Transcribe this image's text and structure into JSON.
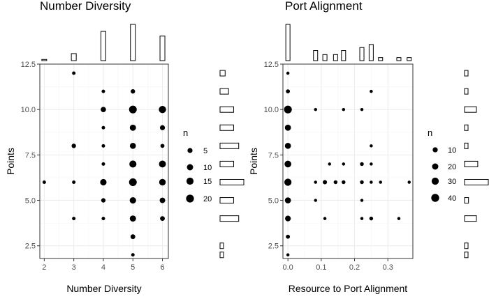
{
  "chart_data": [
    {
      "type": "scatter",
      "title": "Number Diversity",
      "xlabel": "Number Diversity",
      "ylabel": "Points",
      "xlim": [
        1.85,
        6.2
      ],
      "ylim": [
        1.8,
        12.5
      ],
      "x_ticks": [
        "2",
        "3",
        "4",
        "5",
        "6"
      ],
      "y_ticks": [
        "2.5",
        "5.0",
        "7.5",
        "10.0",
        "12.5"
      ],
      "legend": {
        "title": "n",
        "placement": "right",
        "sizes": [
          5,
          10,
          15,
          20
        ],
        "labels": [
          "5",
          "10",
          "15",
          "20"
        ]
      },
      "points": [
        {
          "x": 2,
          "y": 6,
          "n": 1
        },
        {
          "x": 3,
          "y": 12,
          "n": 1
        },
        {
          "x": 3,
          "y": 8,
          "n": 3
        },
        {
          "x": 3,
          "y": 6,
          "n": 1
        },
        {
          "x": 3,
          "y": 4,
          "n": 1
        },
        {
          "x": 4,
          "y": 11,
          "n": 1
        },
        {
          "x": 4,
          "y": 10,
          "n": 6
        },
        {
          "x": 4,
          "y": 9,
          "n": 1
        },
        {
          "x": 4,
          "y": 8,
          "n": 1
        },
        {
          "x": 4,
          "y": 7,
          "n": 1
        },
        {
          "x": 4,
          "y": 6,
          "n": 11
        },
        {
          "x": 4,
          "y": 5,
          "n": 3
        },
        {
          "x": 4,
          "y": 4,
          "n": 1
        },
        {
          "x": 5,
          "y": 11,
          "n": 3
        },
        {
          "x": 5,
          "y": 10,
          "n": 19
        },
        {
          "x": 5,
          "y": 9,
          "n": 10
        },
        {
          "x": 5,
          "y": 8,
          "n": 9
        },
        {
          "x": 5,
          "y": 7,
          "n": 15
        },
        {
          "x": 5,
          "y": 6,
          "n": 19
        },
        {
          "x": 5,
          "y": 5,
          "n": 11
        },
        {
          "x": 5,
          "y": 4,
          "n": 10
        },
        {
          "x": 5,
          "y": 3,
          "n": 4
        },
        {
          "x": 5,
          "y": 2,
          "n": 1
        },
        {
          "x": 6,
          "y": 10,
          "n": 16
        },
        {
          "x": 6,
          "y": 9,
          "n": 5
        },
        {
          "x": 6,
          "y": 8,
          "n": 2
        },
        {
          "x": 6,
          "y": 7,
          "n": 14
        },
        {
          "x": 6,
          "y": 6,
          "n": 12
        },
        {
          "x": 6,
          "y": 5,
          "n": 7
        },
        {
          "x": 6,
          "y": 4,
          "n": 4
        }
      ],
      "top_histogram": [
        {
          "bin": 2,
          "count": 1
        },
        {
          "bin": 3,
          "count": 6
        },
        {
          "bin": 4,
          "count": 25
        },
        {
          "bin": 5,
          "count": 31
        },
        {
          "bin": 6,
          "count": 21
        }
      ],
      "right_histogram": [
        {
          "y": 2,
          "count": 1
        },
        {
          "y": 2.5,
          "count": 1
        },
        {
          "y": 4,
          "count": 11
        },
        {
          "y": 5,
          "count": 8
        },
        {
          "y": 6,
          "count": 14
        },
        {
          "y": 7,
          "count": 8
        },
        {
          "y": 8,
          "count": 11
        },
        {
          "y": 9,
          "count": 8
        },
        {
          "y": 10,
          "count": 8
        },
        {
          "y": 11,
          "count": 5
        },
        {
          "y": 12,
          "count": 3
        }
      ]
    },
    {
      "type": "scatter",
      "title": "Port Alignment",
      "xlabel": "Resource to Port Alignment",
      "ylabel": "Points",
      "xlim": [
        -0.015,
        0.375
      ],
      "ylim": [
        1.8,
        12.5
      ],
      "x_ticks": [
        "0.0",
        "0.1",
        "0.2",
        "0.3"
      ],
      "y_ticks": [
        "2.5",
        "5.0",
        "7.5",
        "10.0",
        "12.5"
      ],
      "legend": {
        "title": "n",
        "placement": "right",
        "sizes": [
          10,
          20,
          30,
          40
        ],
        "labels": [
          "10",
          "20",
          "30",
          "40"
        ]
      },
      "points": [
        {
          "x": 0,
          "y": 12,
          "n": 1
        },
        {
          "x": 0,
          "y": 11,
          "n": 4
        },
        {
          "x": 0,
          "y": 10,
          "n": 38
        },
        {
          "x": 0,
          "y": 9,
          "n": 18
        },
        {
          "x": 0,
          "y": 8,
          "n": 18
        },
        {
          "x": 0,
          "y": 7,
          "n": 25
        },
        {
          "x": 0,
          "y": 6,
          "n": 30
        },
        {
          "x": 0,
          "y": 5,
          "n": 18
        },
        {
          "x": 0,
          "y": 4,
          "n": 15
        },
        {
          "x": 0,
          "y": 3,
          "n": 4
        },
        {
          "x": 0,
          "y": 2,
          "n": 1
        },
        {
          "x": 0.083,
          "y": 10,
          "n": 1
        },
        {
          "x": 0.083,
          "y": 6,
          "n": 1
        },
        {
          "x": 0.083,
          "y": 5,
          "n": 1
        },
        {
          "x": 0.111,
          "y": 6,
          "n": 5
        },
        {
          "x": 0.111,
          "y": 4,
          "n": 1
        },
        {
          "x": 0.125,
          "y": 7,
          "n": 1
        },
        {
          "x": 0.143,
          "y": 6,
          "n": 3
        },
        {
          "x": 0.167,
          "y": 10,
          "n": 1
        },
        {
          "x": 0.167,
          "y": 7,
          "n": 1
        },
        {
          "x": 0.167,
          "y": 6,
          "n": 3
        },
        {
          "x": 0.222,
          "y": 10,
          "n": 1
        },
        {
          "x": 0.222,
          "y": 7,
          "n": 3
        },
        {
          "x": 0.222,
          "y": 6,
          "n": 3
        },
        {
          "x": 0.222,
          "y": 5,
          "n": 1
        },
        {
          "x": 0.222,
          "y": 4,
          "n": 1
        },
        {
          "x": 0.25,
          "y": 11,
          "n": 1
        },
        {
          "x": 0.25,
          "y": 8,
          "n": 1
        },
        {
          "x": 0.25,
          "y": 7,
          "n": 1
        },
        {
          "x": 0.25,
          "y": 6,
          "n": 1
        },
        {
          "x": 0.25,
          "y": 4,
          "n": 3
        },
        {
          "x": 0.278,
          "y": 6,
          "n": 1
        },
        {
          "x": 0.333,
          "y": 4,
          "n": 1
        },
        {
          "x": 0.364,
          "y": 6,
          "n": 1
        }
      ],
      "top_histogram": [
        {
          "bin": 0.0,
          "count": 36
        },
        {
          "bin": 0.083,
          "count": 10
        },
        {
          "bin": 0.111,
          "count": 6
        },
        {
          "bin": 0.143,
          "count": 6
        },
        {
          "bin": 0.167,
          "count": 10
        },
        {
          "bin": 0.222,
          "count": 13
        },
        {
          "bin": 0.25,
          "count": 16
        },
        {
          "bin": 0.278,
          "count": 3
        },
        {
          "bin": 0.333,
          "count": 3
        },
        {
          "bin": 0.364,
          "count": 3
        }
      ],
      "right_histogram": [
        {
          "y": 2,
          "count": 1
        },
        {
          "y": 2.5,
          "count": 1
        },
        {
          "y": 4,
          "count": 9
        },
        {
          "y": 5,
          "count": 3
        },
        {
          "y": 6,
          "count": 18
        },
        {
          "y": 7,
          "count": 10
        },
        {
          "y": 8,
          "count": 1
        },
        {
          "y": 9,
          "count": 1
        },
        {
          "y": 10,
          "count": 9
        },
        {
          "y": 11,
          "count": 2
        },
        {
          "y": 12,
          "count": 1
        }
      ]
    }
  ]
}
